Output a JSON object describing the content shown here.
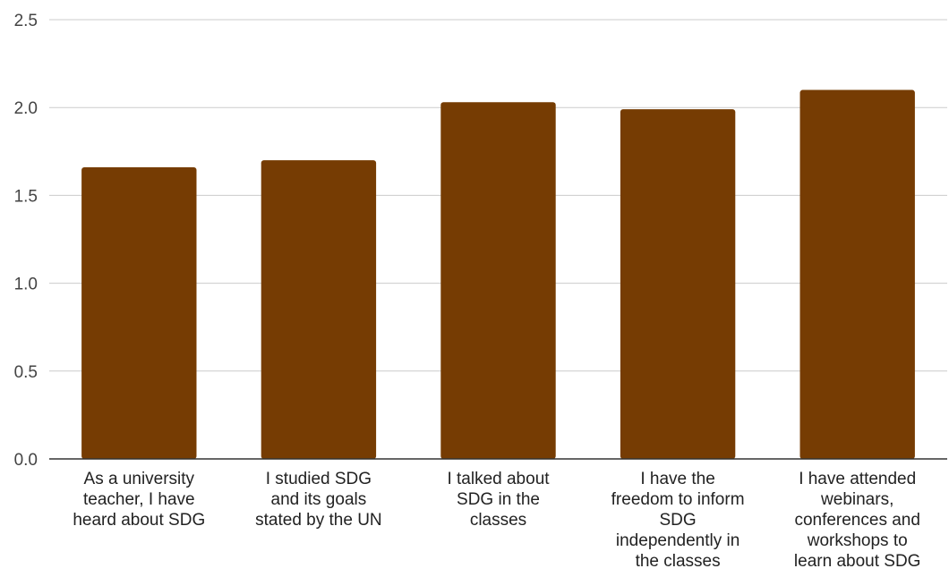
{
  "chart_data": {
    "type": "bar",
    "title": "",
    "xlabel": "",
    "ylabel": "",
    "ylim": [
      0,
      2.5
    ],
    "yticks": [
      0,
      0.5,
      1.0,
      1.5,
      2.0,
      2.5
    ],
    "ytick_labels": [
      "0.0",
      "0.5",
      "1.0",
      "1.5",
      "2.0",
      "2.5"
    ],
    "grid": true,
    "legend": "none",
    "categories": [
      [
        "As a university",
        "teacher, I have",
        "heard about SDG"
      ],
      [
        "I studied SDG",
        "and its goals",
        "stated by the UN"
      ],
      [
        "I talked about",
        "SDG in the",
        "classes"
      ],
      [
        "I have the",
        "freedom to inform",
        "SDG",
        "independently in",
        "the classes"
      ],
      [
        "I have attended",
        "webinars,",
        "conferences and",
        "workshops to",
        "learn about SDG"
      ]
    ],
    "values": [
      1.66,
      1.7,
      2.03,
      1.99,
      2.1
    ],
    "colors": {
      "bar": "#763c03",
      "grid": "#cccccc",
      "axis": "#333333"
    }
  }
}
